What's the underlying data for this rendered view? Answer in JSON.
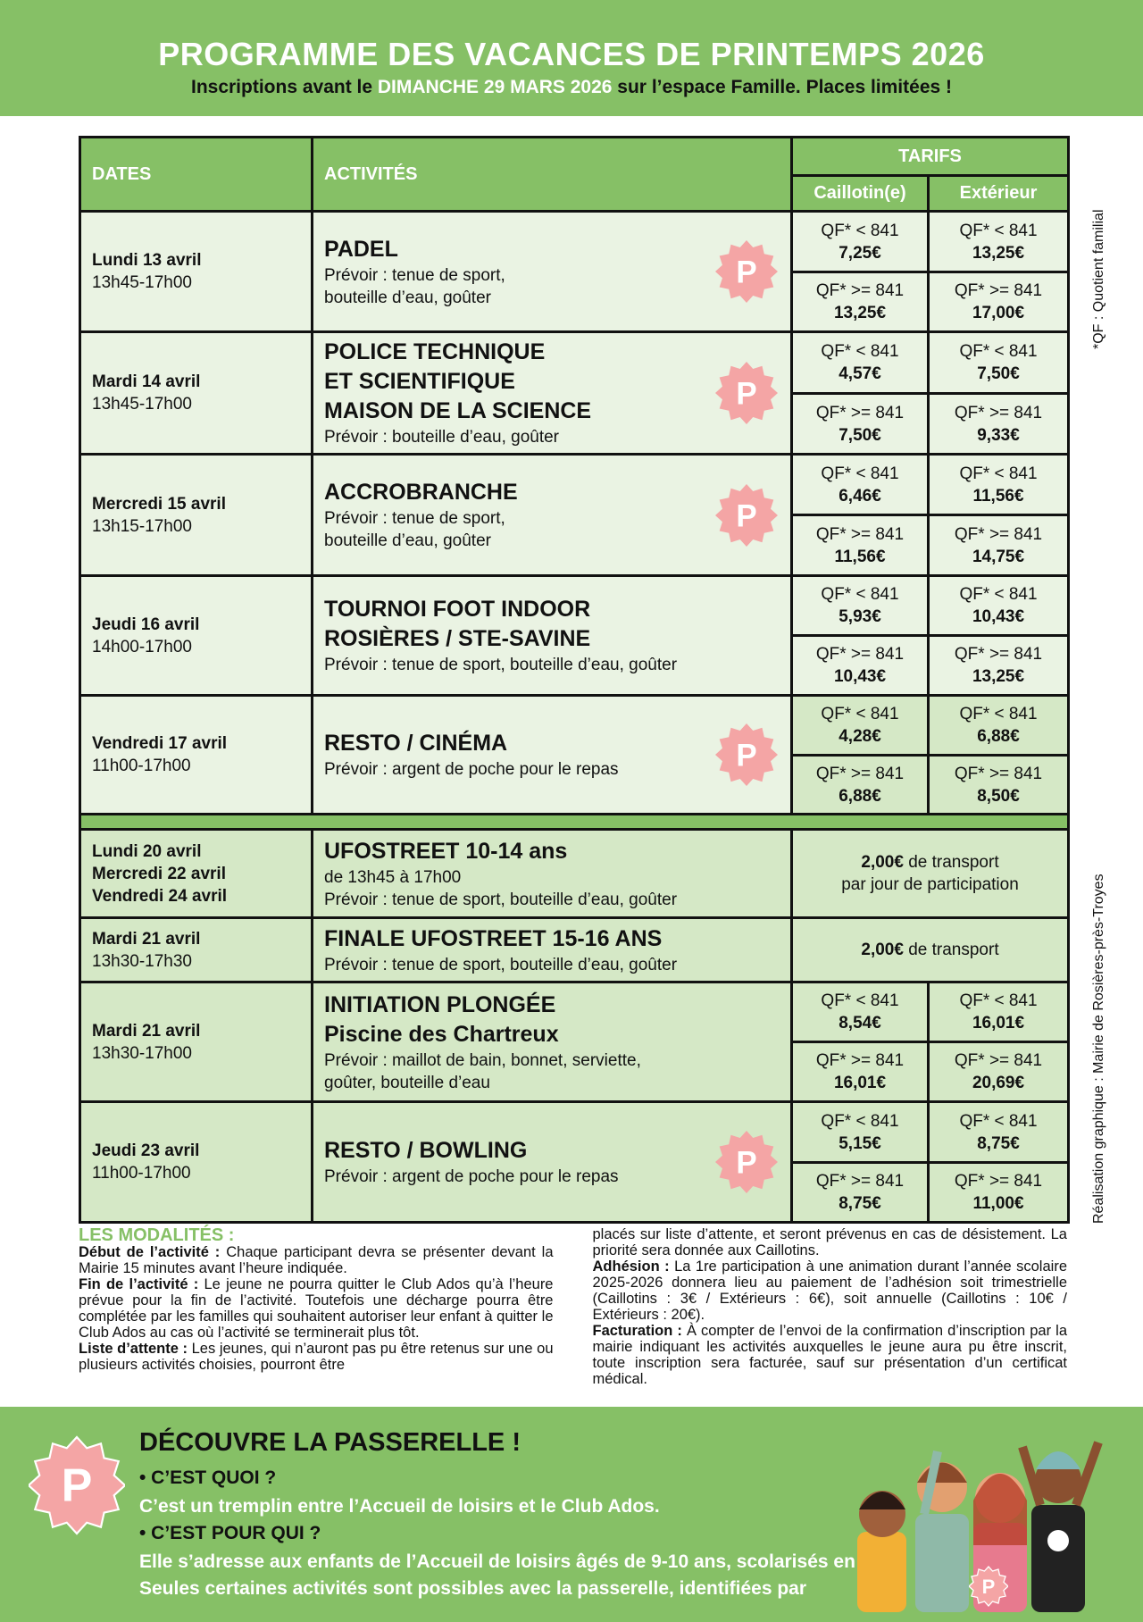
{
  "header": {
    "title": "PROGRAMME DES VACANCES DE PRINTEMPS 2026",
    "sub_before": "Inscriptions avant le ",
    "sub_highlight": "DIMANCHE 29 MARS 2026",
    "sub_after": " sur l’espace Famille. Places limitées !"
  },
  "colors": {
    "green": "#86c066",
    "badge_pink": "#f4a5a5",
    "row_light": "#eaf3e3",
    "row_dark": "#d5e8c6"
  },
  "table": {
    "col_dates": "DATES",
    "col_activities": "ACTIVITÉS",
    "col_tarifs": "TARIFS",
    "col_caillotin": "Caillotin(e)",
    "col_exterieur": "Extérieur",
    "rows": [
      {
        "date": "Lundi 13 avril",
        "time": "13h45-17h00",
        "title": [
          "PADEL"
        ],
        "details": [
          "Prévoir : tenue de sport,",
          "bouteille d’eau, goûter"
        ],
        "passerelle": true,
        "prices": {
          "c_low": "7,25€",
          "e_low": "13,25€",
          "c_high": "13,25€",
          "e_high": "17,00€"
        }
      },
      {
        "date": "Mardi 14 avril",
        "time": "13h45-17h00",
        "title": [
          "POLICE TECHNIQUE",
          "ET SCIENTIFIQUE",
          "MAISON DE LA SCIENCE"
        ],
        "details": [
          "Prévoir : bouteille d’eau, goûter"
        ],
        "passerelle": true,
        "prices": {
          "c_low": "4,57€",
          "e_low": "7,50€",
          "c_high": "7,50€",
          "e_high": "9,33€"
        }
      },
      {
        "date": "Mercredi 15 avril",
        "time": "13h15-17h00",
        "title": [
          "ACCROBRANCHE"
        ],
        "details": [
          "Prévoir : tenue de sport,",
          "bouteille d’eau, goûter"
        ],
        "passerelle": true,
        "prices": {
          "c_low": "6,46€",
          "e_low": "11,56€",
          "c_high": "11,56€",
          "e_high": "14,75€"
        }
      },
      {
        "date": "Jeudi 16 avril",
        "time": "14h00-17h00",
        "title": [
          "TOURNOI FOOT INDOOR",
          "ROSIÈRES / STE-SAVINE"
        ],
        "details": [
          "Prévoir : tenue de sport, bouteille d’eau, goûter"
        ],
        "passerelle": false,
        "prices": {
          "c_low": "5,93€",
          "e_low": "10,43€",
          "c_high": "10,43€",
          "e_high": "13,25€"
        }
      },
      {
        "date": "Vendredi 17 avril",
        "time": "11h00-17h00",
        "title": [
          "RESTO / CINÉMA"
        ],
        "details": [
          "Prévoir : argent de poche pour le repas"
        ],
        "passerelle": true,
        "prices": {
          "c_low": "4,28€",
          "e_low": "6,88€",
          "c_high": "6,88€",
          "e_high": "8,50€"
        }
      }
    ],
    "rows2": [
      {
        "dates": [
          "Lundi 20 avril",
          "Mercredi 22 avril",
          "Vendredi 24 avril"
        ],
        "time": "",
        "title": [
          "UFOSTREET 10-14 ans"
        ],
        "details": [
          "de 13h45 à 17h00",
          "Prévoir : tenue de sport, bouteille d’eau, goûter"
        ],
        "passerelle": false,
        "flat_bold": "2,00€",
        "flat_rest": " de transport",
        "flat_line2": "par jour de participation"
      },
      {
        "dates": [
          "Mardi 21 avril"
        ],
        "time": "13h30-17h30",
        "title": [
          "FINALE UFOSTREET 15-16 ANS"
        ],
        "details": [
          "Prévoir : tenue de sport, bouteille d’eau, goûter"
        ],
        "passerelle": false,
        "flat_bold": "2,00€",
        "flat_rest": " de transport",
        "flat_line2": ""
      },
      {
        "dates": [
          "Mardi 21 avril"
        ],
        "time": "13h30-17h00",
        "title": [
          "INITIATION PLONGÉE",
          "Piscine des Chartreux"
        ],
        "details": [
          "Prévoir : maillot de bain, bonnet, serviette,",
          "goûter, bouteille d’eau"
        ],
        "passerelle": false,
        "prices": {
          "c_low": "8,54€",
          "e_low": "16,01€",
          "c_high": "16,01€",
          "e_high": "20,69€"
        }
      },
      {
        "dates": [
          "Jeudi 23 avril"
        ],
        "time": "11h00-17h00",
        "title": [
          "RESTO / BOWLING"
        ],
        "details": [
          "Prévoir : argent de poche pour le repas"
        ],
        "passerelle": true,
        "prices": {
          "c_low": "5,15€",
          "e_low": "8,75€",
          "c_high": "8,75€",
          "e_high": "11,00€"
        }
      }
    ],
    "qf_low": "QF* < 841",
    "qf_high": "QF* >= 841"
  },
  "side": {
    "qf_note": "*QF : Quotient familial",
    "credit": "Réalisation graphique : Mairie de Rosières-près-Troyes"
  },
  "modalites": {
    "title": "LES MODALITÉS :",
    "items_left": [
      {
        "k": "Début de l’activité :",
        "v": " Chaque participant devra se présenter devant la Mairie 15 minutes avant l’heure indiquée."
      },
      {
        "k": "Fin de l’activité :",
        "v": " Le jeune ne pourra quitter le Club Ados qu’à l’heure prévue pour la fin de l’activité. Toutefois une décharge pourra être complétée par les familles qui souhaitent autoriser leur enfant à quitter le Club Ados au cas où l’activité se terminerait plus tôt."
      },
      {
        "k": "Liste d’attente :",
        "v": " Les jeunes, qui n’auront pas pu être retenus sur une ou plusieurs activités choisies, pourront être"
      }
    ],
    "right_lead": "placés sur liste d’attente, et seront prévenus en cas de désistement. La priorité sera donnée aux Caillotins.",
    "items_right": [
      {
        "k": "Adhésion :",
        "v": " La 1re participation à une animation durant l’année scolaire 2025-2026 donnera lieu au paiement de l’adhésion soit trimestrielle (Caillotins : 3€ / Extérieurs : 6€), soit annuelle (Caillotins : 10€ / Extérieurs : 20€)."
      },
      {
        "k": "Facturation :",
        "v": " À compter de l’envoi de la confirmation d’inscription par la mairie indiquant les activités auxquelles le jeune aura pu être inscrit, toute inscription sera facturée, sauf sur présentation d’un certificat médical."
      }
    ]
  },
  "passerelle": {
    "title": "DÉCOUVRE LA PASSERELLE !",
    "q1": "• C’EST QUOI ?",
    "a1": "C’est un tremplin entre l’Accueil de loisirs et le Club Ados.",
    "q2": "• C’EST POUR QUI ?",
    "a2": "Elle s’adresse aux enfants de l’Accueil de loisirs âgés de 9-10 ans, scolarisés en CM2.",
    "a3": "Seules certaines activités sont possibles avec la passerelle, identifiées par",
    "badge_letter": "P"
  }
}
